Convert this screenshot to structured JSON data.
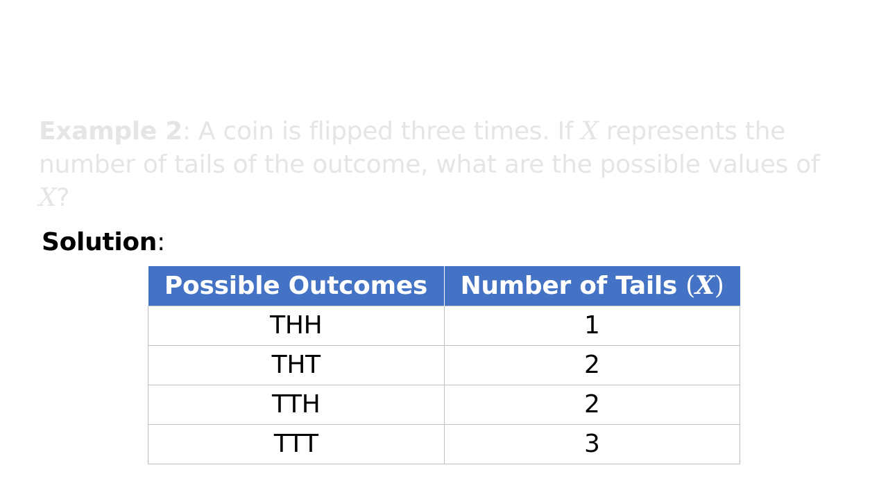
{
  "problem": {
    "label": "Example 2",
    "text_part1": ": A coin is flipped three times. If ",
    "variable": "X",
    "text_part2": " represents the number of tails of the outcome, what are the possible values of ",
    "variable2": "X",
    "text_part3": "?"
  },
  "solution": {
    "label": "Solution",
    "colon": ":"
  },
  "table": {
    "headers": {
      "col1": "Possible Outcomes",
      "col2_text": "Number of Tails ",
      "col2_open": "(",
      "col2_var": "X",
      "col2_close": ")"
    },
    "rows": [
      {
        "outcome": "THH",
        "tails": "1"
      },
      {
        "outcome": "THT",
        "tails": "2"
      },
      {
        "outcome": "TTH",
        "tails": "2"
      },
      {
        "outcome": "TTT",
        "tails": "3"
      }
    ]
  },
  "colors": {
    "header_bg": "#4472c4",
    "faded_text": "#e5e5e5"
  }
}
